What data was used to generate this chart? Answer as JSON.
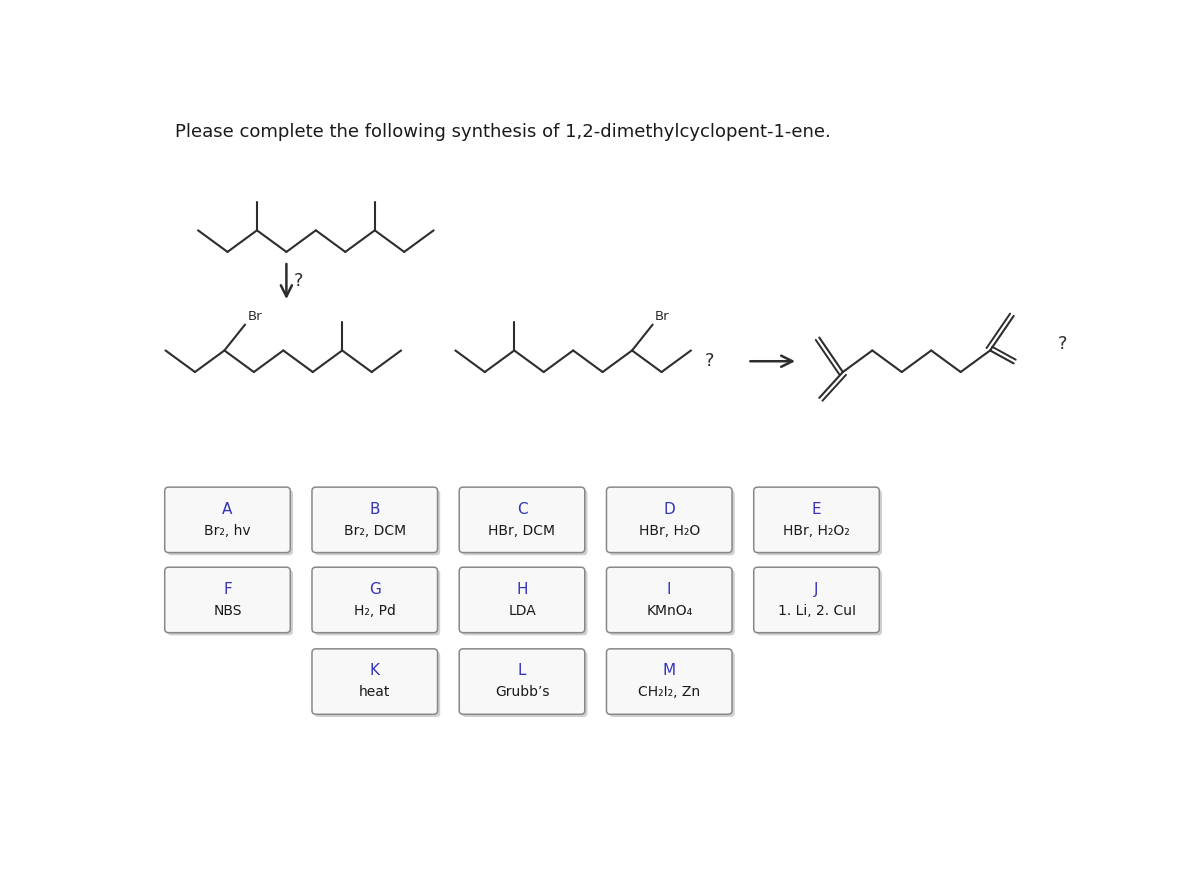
{
  "title": "Please complete the following synthesis of 1,2-dimethylcyclopent-1-ene.",
  "title_fontsize": 13,
  "bg_color": "#ffffff",
  "line_color": "#2d2d2d",
  "button_label_color": "#3333bb",
  "button_text_color": "#1a1a1a",
  "buttons_row1": [
    {
      "label": "A",
      "text": "Br₂, hv"
    },
    {
      "label": "B",
      "text": "Br₂, DCM"
    },
    {
      "label": "C",
      "text": "HBr, DCM"
    },
    {
      "label": "D",
      "text": "HBr, H₂O"
    },
    {
      "label": "E",
      "text": "HBr, H₂O₂"
    }
  ],
  "buttons_row2": [
    {
      "label": "F",
      "text": "NBS"
    },
    {
      "label": "G",
      "text": "H₂, Pd"
    },
    {
      "label": "H",
      "text": "LDA"
    },
    {
      "label": "I",
      "text": "KMnO₄"
    },
    {
      "label": "J",
      "text": "1. Li, 2. CuI"
    }
  ],
  "buttons_row3": [
    {
      "label": "K",
      "text": "heat"
    },
    {
      "label": "L",
      "text": "Grubb’s"
    },
    {
      "label": "M",
      "text": "CH₂I₂, Zn"
    }
  ]
}
